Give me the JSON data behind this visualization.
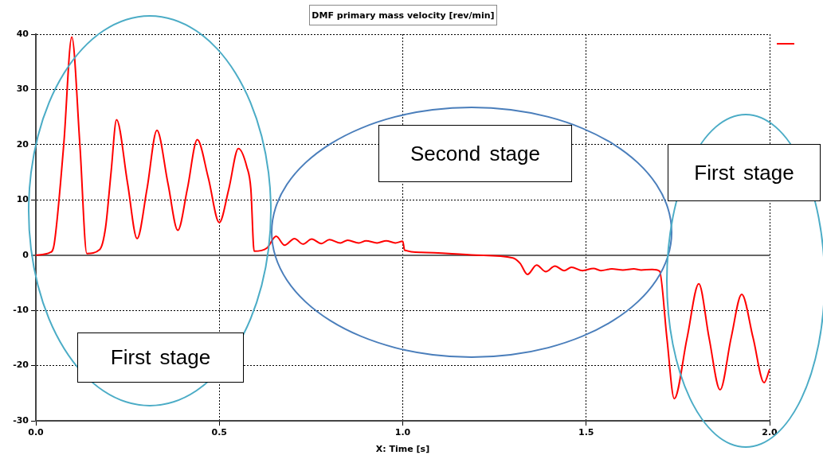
{
  "chart_data": {
    "type": "line",
    "title": "DMF primary mass velocity [rev/min]",
    "xlabel": "X: Time [s]",
    "x": [
      0,
      0.04,
      0.05,
      0.076,
      0.098,
      0.12,
      0.139,
      0.174,
      0.19,
      0.205,
      0.22,
      0.25,
      0.276,
      0.303,
      0.33,
      0.36,
      0.387,
      0.413,
      0.44,
      0.47,
      0.5,
      0.526,
      0.552,
      0.575,
      0.586,
      0.595,
      0.63,
      0.655,
      0.678,
      0.705,
      0.728,
      0.752,
      0.778,
      0.8,
      0.83,
      0.85,
      0.88,
      0.9,
      0.93,
      0.955,
      0.98,
      1.0,
      1.005,
      1.05,
      1.2,
      1.3,
      1.32,
      1.34,
      1.365,
      1.39,
      1.415,
      1.44,
      1.46,
      1.49,
      1.52,
      1.54,
      1.57,
      1.6,
      1.63,
      1.65,
      1.68,
      1.7,
      1.72,
      1.74,
      1.775,
      1.807,
      1.835,
      1.865,
      1.895,
      1.924,
      1.955,
      1.985,
      2.0
    ],
    "series": [
      {
        "color": "#ff0000",
        "values": [
          0,
          0.5,
          2,
          20,
          39.5,
          20,
          0.3,
          1,
          5,
          15,
          24.5,
          13,
          3,
          12,
          22.6,
          13,
          4.5,
          12,
          20.9,
          14,
          5.9,
          12,
          19.3,
          16,
          12,
          0.7,
          1.3,
          3.4,
          1.8,
          3,
          2,
          2.9,
          2.1,
          2.8,
          2.2,
          2.7,
          2.2,
          2.6,
          2.2,
          2.6,
          2.2,
          2.5,
          0.9,
          0.5,
          0,
          -0.5,
          -1.5,
          -3.5,
          -1.8,
          -3,
          -2,
          -2.8,
          -2.2,
          -2.8,
          -2.4,
          -2.8,
          -2.5,
          -2.7,
          -2.5,
          -2.7,
          -2.6,
          -2.9,
          -15,
          -26,
          -15,
          -5.2,
          -15,
          -24.4,
          -15,
          -7.1,
          -15,
          -23.1,
          -20.7
        ]
      }
    ],
    "xlim": [
      0,
      2
    ],
    "xticks": [
      {
        "value": 0,
        "label": "0.0"
      },
      {
        "value": 0.5,
        "label": "0.5"
      },
      {
        "value": 1,
        "label": "1.0"
      },
      {
        "value": 1.5,
        "label": "1.5"
      },
      {
        "value": 2,
        "label": "2.0"
      }
    ],
    "ylim": [
      -30,
      40
    ],
    "yticks": [
      -30,
      -20,
      -10,
      0,
      10,
      20,
      30,
      40
    ],
    "grid": true,
    "marker": "none",
    "line_style": "solid",
    "annotations": [
      "Second stage",
      "First stage",
      "First stage"
    ]
  }
}
